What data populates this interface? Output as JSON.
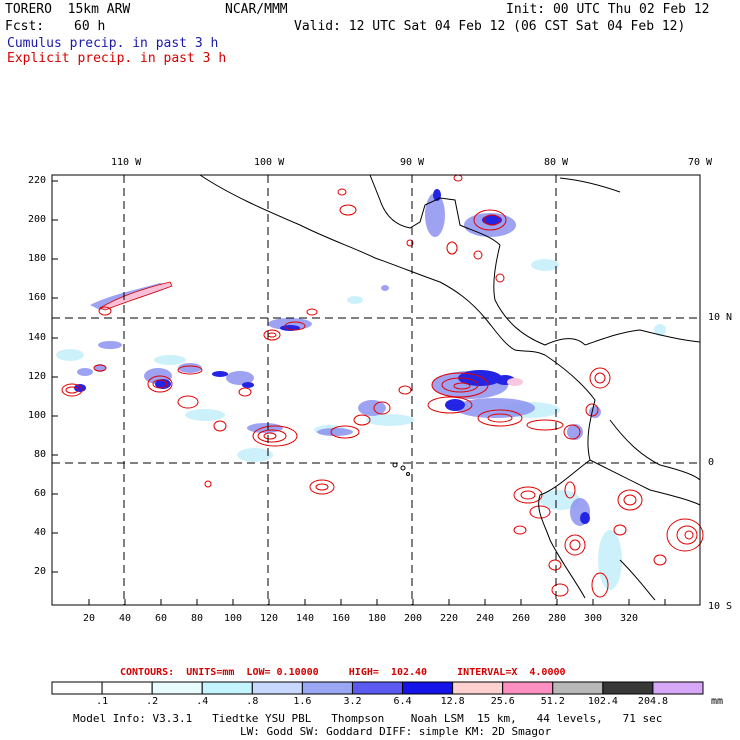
{
  "header": {
    "model": "TORERO  15km ARW",
    "org": "NCAR/MMM",
    "init": "Init: 00 UTC Thu 02 Feb 12",
    "fcst_label": "Fcst:",
    "fcst_value": "60 h",
    "valid": "Valid: 12 UTC Sat 04 Feb 12 (06 CST Sat 04 Feb 12)",
    "cumulus": "Cumulus precip. in past 3 h",
    "explicit": "Explicit precip. in past 3 h"
  },
  "map": {
    "top_longitudes": [
      "110 W",
      "100 W",
      "90 W",
      "80 W",
      "70 W"
    ],
    "right_latitudes": [
      "10 N",
      "0",
      "10 S"
    ],
    "y_grid_labels": [
      "220",
      "200",
      "180",
      "160",
      "140",
      "120",
      "100",
      "80",
      "60",
      "40",
      "20"
    ],
    "x_grid_labels": [
      "20",
      "40",
      "60",
      "80",
      "100",
      "120",
      "140",
      "160",
      "180",
      "200",
      "220",
      "240",
      "260",
      "280",
      "300",
      "320"
    ],
    "colors": {
      "coast": "#000000",
      "grid": "#000000",
      "explicit_contour": "#e00000",
      "cumulus_light": "#b8e8f8",
      "cumulus_mid": "#8080f0",
      "cumulus_dark": "#2020e0"
    }
  },
  "contour_info": "CONTOURS:  UNITS=mm  LOW= 0.10000     HIGH=  102.40     INTERVAL=X  4.0000",
  "colorbar": {
    "labels": [
      ".1",
      ".2",
      ".4",
      ".8",
      "1.6",
      "3.2",
      "6.4",
      "12.8",
      "25.6",
      "51.2",
      "102.4",
      "204.8"
    ],
    "unit": "mm",
    "colors": [
      "#ffffff",
      "#ffffff",
      "#e8fbff",
      "#c4f4ff",
      "#c8d8ff",
      "#9aa8f4",
      "#5a5af0",
      "#1414e8",
      "#ffd0d0",
      "#ff90c0",
      "#b8b8b8",
      "#383838",
      "#d8a8f8"
    ]
  },
  "footer": {
    "line1": "Model Info: V3.3.1   Tiedtke YSU PBL   Thompson    Noah LSM  15 km,   44 levels,   71 sec",
    "line2": "LW: Godd SW: Goddard DIFF: simple KM: 2D Smagor"
  }
}
